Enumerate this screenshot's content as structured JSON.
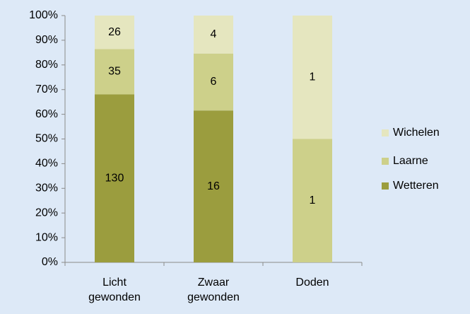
{
  "chart_data": {
    "type": "bar",
    "stacking": "percent",
    "categories": [
      "Licht gewonden",
      "Zwaar gewonden",
      "Doden"
    ],
    "series": [
      {
        "name": "Wetteren",
        "color": "#9b9d3e",
        "values": [
          130,
          16,
          0
        ]
      },
      {
        "name": "Laarne",
        "color": "#cdd08a",
        "values": [
          35,
          6,
          1
        ]
      },
      {
        "name": "Wichelen",
        "color": "#e5e6bf",
        "values": [
          26,
          4,
          1
        ]
      }
    ],
    "ylim": [
      0,
      100
    ],
    "yticks": [
      {
        "value": 0,
        "label": "0%"
      },
      {
        "value": 10,
        "label": "10%"
      },
      {
        "value": 20,
        "label": "20%"
      },
      {
        "value": 30,
        "label": "30%"
      },
      {
        "value": 40,
        "label": "40%"
      },
      {
        "value": 50,
        "label": "50%"
      },
      {
        "value": 60,
        "label": "60%"
      },
      {
        "value": 70,
        "label": "70%"
      },
      {
        "value": 80,
        "label": "80%"
      },
      {
        "value": 90,
        "label": "90%"
      },
      {
        "value": 100,
        "label": "100%"
      }
    ],
    "grid": false,
    "legend": "right"
  }
}
